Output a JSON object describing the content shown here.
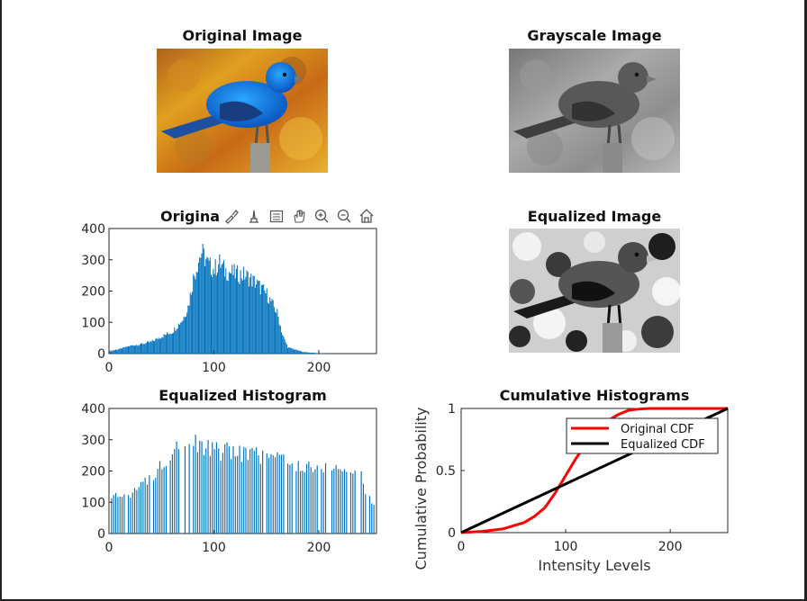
{
  "titles": {
    "original_image": "Original Image",
    "grayscale_image": "Grayscale Image",
    "original_histogram": "Origina",
    "equalized_image": "Equalized Image",
    "equalized_histogram": "Equalized Histogram",
    "cumulative_histograms": "Cumulative Histograms"
  },
  "toolbar": {
    "icons": [
      "brush-icon",
      "data-tip-icon",
      "legend-icon",
      "pan-hand-icon",
      "zoom-in-icon",
      "zoom-out-icon",
      "home-icon"
    ]
  },
  "colors": {
    "bar": "#0072BD",
    "original_cdf": "#ff0000",
    "equalized_cdf": "#000000"
  },
  "chart_data": [
    {
      "type": "bar",
      "title": "Original Histogram",
      "xlim": [
        0,
        255
      ],
      "ylim": [
        0,
        400
      ],
      "xticks": [
        0,
        100,
        200
      ],
      "yticks": [
        0,
        100,
        200,
        300,
        400
      ],
      "bins": "0-255 intensity levels",
      "profile": [
        [
          0,
          8
        ],
        [
          10,
          15
        ],
        [
          20,
          25
        ],
        [
          30,
          30
        ],
        [
          40,
          38
        ],
        [
          50,
          55
        ],
        [
          60,
          70
        ],
        [
          70,
          110
        ],
        [
          75,
          150
        ],
        [
          80,
          240
        ],
        [
          85,
          300
        ],
        [
          88,
          325
        ],
        [
          95,
          280
        ],
        [
          100,
          270
        ],
        [
          105,
          290
        ],
        [
          110,
          265
        ],
        [
          120,
          255
        ],
        [
          130,
          250
        ],
        [
          140,
          225
        ],
        [
          150,
          190
        ],
        [
          160,
          130
        ],
        [
          165,
          60
        ],
        [
          170,
          20
        ],
        [
          185,
          5
        ],
        [
          200,
          1
        ],
        [
          220,
          0
        ],
        [
          255,
          0
        ]
      ]
    },
    {
      "type": "bar",
      "title": "Equalized Histogram",
      "xlim": [
        0,
        255
      ],
      "ylim": [
        0,
        400
      ],
      "xticks": [
        0,
        100,
        200
      ],
      "yticks": [
        0,
        100,
        200,
        300,
        400
      ],
      "profile": [
        [
          0,
          110
        ],
        [
          10,
          120
        ],
        [
          20,
          130
        ],
        [
          30,
          150
        ],
        [
          40,
          180
        ],
        [
          50,
          220
        ],
        [
          60,
          270
        ],
        [
          65,
          300
        ],
        [
          70,
          320
        ],
        [
          80,
          290
        ],
        [
          90,
          275
        ],
        [
          100,
          265
        ],
        [
          110,
          260
        ],
        [
          120,
          265
        ],
        [
          130,
          255
        ],
        [
          140,
          250
        ],
        [
          150,
          255
        ],
        [
          160,
          245
        ],
        [
          170,
          230
        ],
        [
          180,
          220
        ],
        [
          190,
          215
        ],
        [
          200,
          210
        ],
        [
          210,
          210
        ],
        [
          220,
          205
        ],
        [
          230,
          200
        ],
        [
          240,
          180
        ],
        [
          245,
          120
        ],
        [
          250,
          100
        ],
        [
          255,
          90
        ]
      ]
    },
    {
      "type": "line",
      "title": "Cumulative Histograms",
      "xlabel": "Intensity Levels",
      "ylabel": "Cumulative Probability",
      "xlim": [
        0,
        255
      ],
      "ylim": [
        0,
        1
      ],
      "xticks": [
        0,
        100,
        200
      ],
      "yticks": [
        0,
        0.5,
        1
      ],
      "legend": "top-right",
      "series": [
        {
          "name": "Original CDF",
          "x": [
            0,
            20,
            40,
            60,
            70,
            80,
            90,
            100,
            110,
            120,
            130,
            140,
            150,
            160,
            170,
            180,
            200,
            255
          ],
          "values": [
            0,
            0.01,
            0.03,
            0.08,
            0.13,
            0.2,
            0.32,
            0.46,
            0.6,
            0.72,
            0.82,
            0.9,
            0.95,
            0.985,
            0.995,
            1,
            1,
            1
          ]
        },
        {
          "name": "Equalized CDF",
          "x": [
            0,
            255
          ],
          "values": [
            0,
            1
          ]
        }
      ]
    }
  ]
}
